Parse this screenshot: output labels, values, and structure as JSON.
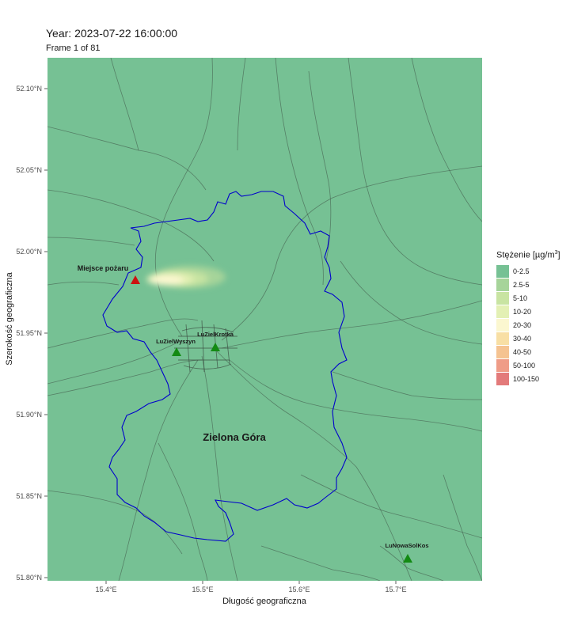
{
  "header": {
    "title": "Year: 2023-07-22 16:00:00",
    "subtitle": "Frame 1 of 81"
  },
  "axes": {
    "x_title": "Długość geograficzna",
    "y_title": "Szerokość geograficzna",
    "x_ticks": [
      "15.4°E",
      "15.5°E",
      "15.6°E",
      "15.7°E"
    ],
    "y_ticks": [
      "52.10°N",
      "52.05°N",
      "52.00°N",
      "51.95°N",
      "51.90°N",
      "51.85°N",
      "51.80°N"
    ]
  },
  "map": {
    "background_color": "#76c194",
    "boundary_color": "#0000cc",
    "road_color": "#3b4a40",
    "city_label": "Zielona Góra",
    "fire_label": "Miejsce pożaru",
    "fire_marker_color": "#cc1111",
    "station_marker_color": "#138a13",
    "stations": [
      {
        "name": "LuZielWyszyn"
      },
      {
        "name": "LuZielKrotka"
      },
      {
        "name": "LuNowaSolKos"
      }
    ]
  },
  "legend": {
    "title_prefix": "Stężenie [",
    "title_unit_mu": "µg",
    "title_unit_rest": "/m",
    "title_sup": "3",
    "title_close": "]",
    "items": [
      {
        "label": "0-2.5",
        "color": "#76c194"
      },
      {
        "label": "2.5-5",
        "color": "#a6d49a"
      },
      {
        "label": "5-10",
        "color": "#c8e4a2"
      },
      {
        "label": "10-20",
        "color": "#e3f0b4"
      },
      {
        "label": "20-30",
        "color": "#fbf7d0"
      },
      {
        "label": "30-40",
        "color": "#f8dfa4"
      },
      {
        "label": "40-50",
        "color": "#f5c391"
      },
      {
        "label": "50-100",
        "color": "#ef9c87"
      },
      {
        "label": "100-150",
        "color": "#e37a7a"
      }
    ]
  }
}
